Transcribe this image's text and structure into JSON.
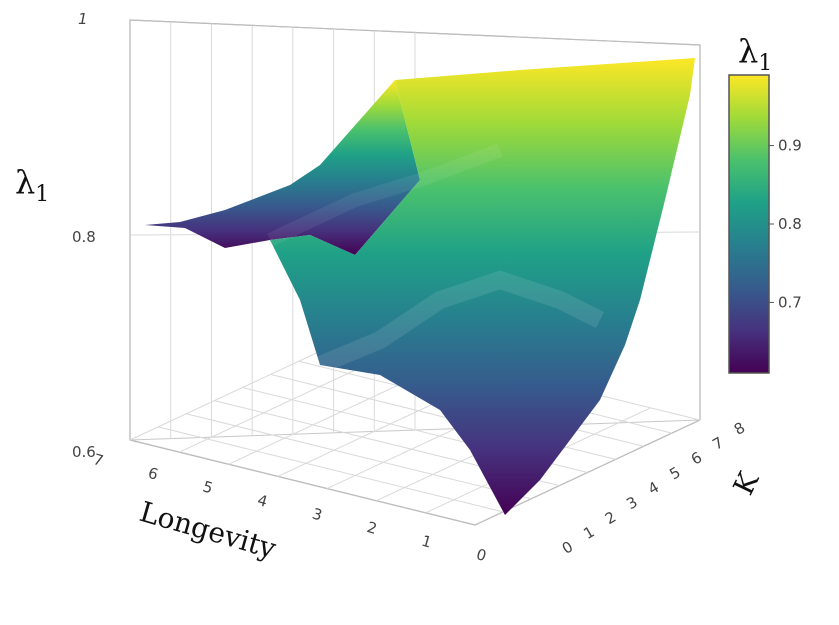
{
  "chart_data": {
    "type": "surface",
    "colorscale": "viridis",
    "colorscale_stops": [
      "#440154",
      "#46327e",
      "#365c8d",
      "#277f8e",
      "#1fa187",
      "#4ac16d",
      "#a0da39",
      "#fde725"
    ],
    "z_axis": {
      "title_main": "λ",
      "title_sub": "1",
      "range": [
        0.6,
        1.0
      ],
      "ticks": [
        "0.6",
        "0.8",
        "1"
      ]
    },
    "x_axis": {
      "title": "Longevity",
      "ticks": [
        "0",
        "1",
        "2",
        "3",
        "4",
        "5",
        "6",
        "7"
      ]
    },
    "y_axis": {
      "title": "K",
      "ticks": [
        "0",
        "1",
        "2",
        "3",
        "4",
        "5",
        "6",
        "7",
        "8"
      ]
    },
    "colorbar": {
      "title_main": "λ",
      "title_sub": "1",
      "range": [
        0.61,
        0.99
      ],
      "ticks": [
        "0.7",
        "0.8",
        "0.9"
      ]
    },
    "surface_curves": {
      "front_edge_near_k0": [
        {
          "longevity": 7,
          "lambda1": 0.81
        },
        {
          "longevity": 6,
          "lambda1": 0.81
        },
        {
          "longevity": 5,
          "lambda1": 0.79
        },
        {
          "longevity": 4,
          "lambda1": 0.79
        },
        {
          "longevity": 3,
          "lambda1": 0.8
        },
        {
          "longevity": 2,
          "lambda1": 0.72
        },
        {
          "longevity": 1,
          "lambda1": 0.7
        },
        {
          "longevity": 0,
          "lambda1": 0.61
        }
      ],
      "right_edge_longevity0": [
        {
          "k": 0,
          "lambda1": 0.61
        },
        {
          "k": 1,
          "lambda1": 0.64
        },
        {
          "k": 2,
          "lambda1": 0.67
        },
        {
          "k": 3,
          "lambda1": 0.71
        },
        {
          "k": 4,
          "lambda1": 0.75
        },
        {
          "k": 5,
          "lambda1": 0.81
        },
        {
          "k": 6,
          "lambda1": 0.9
        },
        {
          "k": 7,
          "lambda1": 0.96
        },
        {
          "k": 8,
          "lambda1": 0.98
        }
      ],
      "top_ridge": [
        {
          "longevity": 7,
          "lambda1": 0.81
        },
        {
          "longevity": 6,
          "lambda1": 0.81
        },
        {
          "longevity": 5,
          "lambda1": 0.83
        },
        {
          "longevity": 4,
          "lambda1": 0.85
        },
        {
          "longevity": 3,
          "lambda1": 0.87
        },
        {
          "longevity": 2,
          "lambda1": 0.97
        },
        {
          "longevity": 1,
          "lambda1": 0.97
        },
        {
          "longevity": 0,
          "lambda1": 0.98
        }
      ]
    }
  }
}
